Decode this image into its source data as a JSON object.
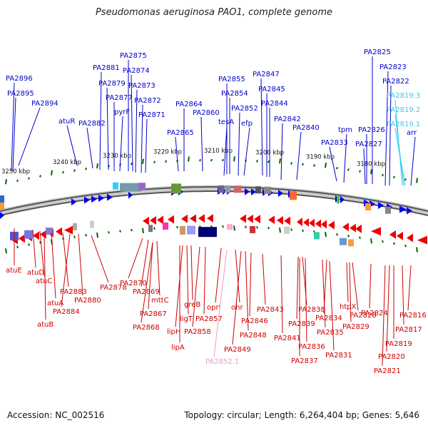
{
  "title": "Pseudomonas aeruginosa PAO1, complete genome",
  "footer": {
    "accession": "Accession: NC_002516",
    "stats": "Topology: circular; Length: 6,264,404 bp; Genes: 5,646"
  },
  "colors": {
    "forward": "#0000ee",
    "reverse": "#ee0000",
    "forward_label": "#0000cc",
    "reverse_label": "#cc0000",
    "rna": "#33ccee",
    "pink": "#ee99cc",
    "tick": "#006600",
    "backbone": "#888888"
  },
  "kbp_ticks": [
    "3250 kbp",
    "3240 kbp",
    "3230 kbp",
    "3220 kbp",
    "3210 kbp",
    "3200 kbp",
    "3190 kbp",
    "3180 kbp"
  ],
  "top_genes": [
    "PA2896",
    "PA2895",
    "PA2894",
    "atuR",
    "PA2882",
    "PA2881",
    "PA2879",
    "PA2877",
    "pyrF",
    "PA2875",
    "PA2874",
    "PA2873",
    "PA2872",
    "PA2871",
    "PA2865",
    "PA2864",
    "PA2860",
    "PA2855",
    "PA2854",
    "tesA",
    "PA2852",
    "efp",
    "PA2847",
    "PA2845",
    "PA2844",
    "PA2842",
    "PA2840",
    "PA2833",
    "tpm",
    "PA2827",
    "PA2826",
    "PA2825",
    "PA2823",
    "PA2822",
    "PA2819.3",
    "PA2819.2",
    "PA2819.1",
    "arr"
  ],
  "bottom_genes": [
    "atuE",
    "atuD",
    "atuC",
    "atuA",
    "atuB",
    "PA2883",
    "PA2884",
    "PA2880",
    "PA2878",
    "PA2870",
    "PA2869",
    "mttC",
    "PA2867",
    "PA2868",
    "greB",
    "ligT",
    "lipH",
    "lipA",
    "PA2857",
    "PA2858",
    "oprI",
    "ohr",
    "PA2852.1",
    "PA2848",
    "PA2849",
    "PA2846",
    "PA2843",
    "PA2841",
    "PA2838",
    "PA2839",
    "PA2836",
    "PA2837",
    "PA2835",
    "PA2834",
    "PA2831",
    "htpX",
    "PA2829",
    "PA2828",
    "PA2824",
    "PA2816",
    "PA2817",
    "PA2819",
    "PA2820",
    "PA2821"
  ]
}
